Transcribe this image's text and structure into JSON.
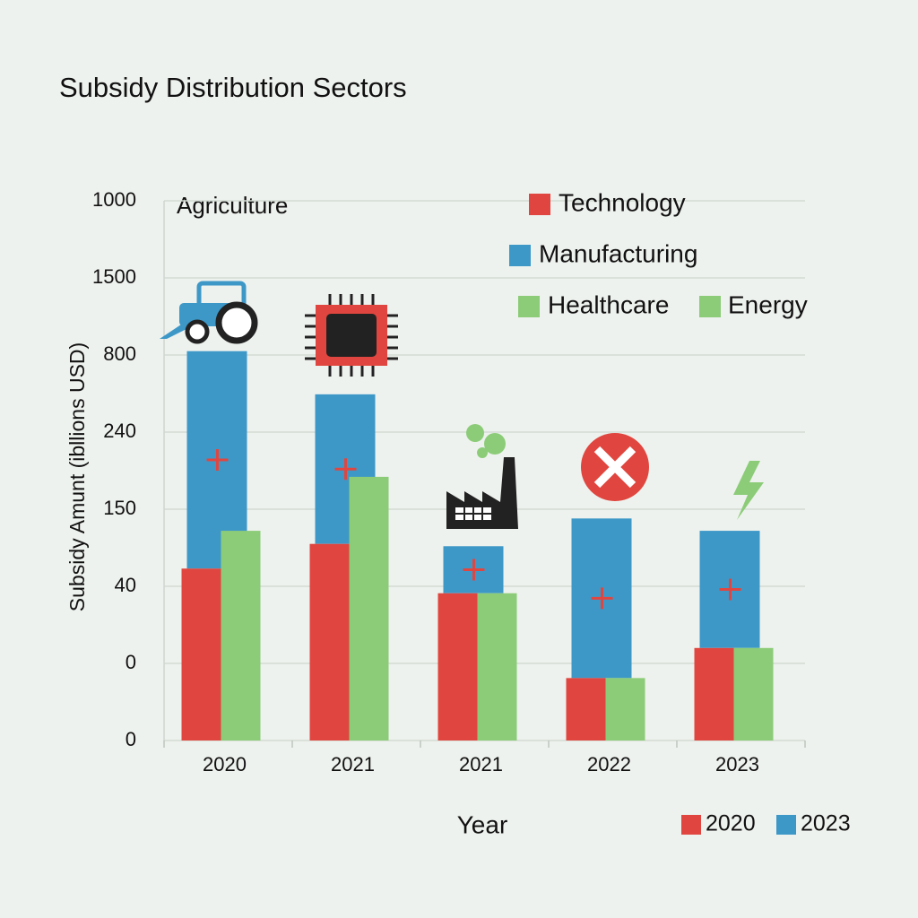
{
  "chart_data": {
    "type": "bar",
    "title": "Subsidy Distribution Sectors",
    "annotation": "Agriculture",
    "x_label": "Year",
    "y_label": "Subsidy Amunt (ibllions USD)",
    "categories": [
      "2020",
      "2021",
      "2021",
      "2022",
      "2023"
    ],
    "ylim": [
      0,
      7
    ],
    "yticks": [
      {
        "value": 0,
        "label": "0"
      },
      {
        "value": 1,
        "label": "0"
      },
      {
        "value": 2,
        "label": "40"
      },
      {
        "value": 3,
        "label": "150"
      },
      {
        "value": 4,
        "label": "240"
      },
      {
        "value": 5,
        "label": "800"
      },
      {
        "value": 6,
        "label": "1500"
      },
      {
        "value": 7,
        "label": "1000"
      }
    ],
    "grid": true,
    "series": [
      {
        "name": "Technology",
        "color": "#e0463f",
        "values": [
          2.23,
          2.55,
          1.91,
          0.81,
          1.2
        ]
      },
      {
        "name": "Manufacturing",
        "color": "#3d98c8",
        "values": [
          2.82,
          1.94,
          0.61,
          2.07,
          1.52
        ],
        "stacked_on": 0
      },
      {
        "name": "Healthcare",
        "color": "#8ccc78",
        "values": [
          2.72,
          3.42,
          1.91,
          0.81,
          1.2
        ]
      }
    ],
    "extra_legend": [
      {
        "label": "Energy",
        "color": "#8ccc78"
      }
    ],
    "bottom_legend": [
      {
        "label": "2020",
        "color": "#e0463f"
      },
      {
        "label": "2023",
        "color": "#3d98c8"
      }
    ]
  }
}
